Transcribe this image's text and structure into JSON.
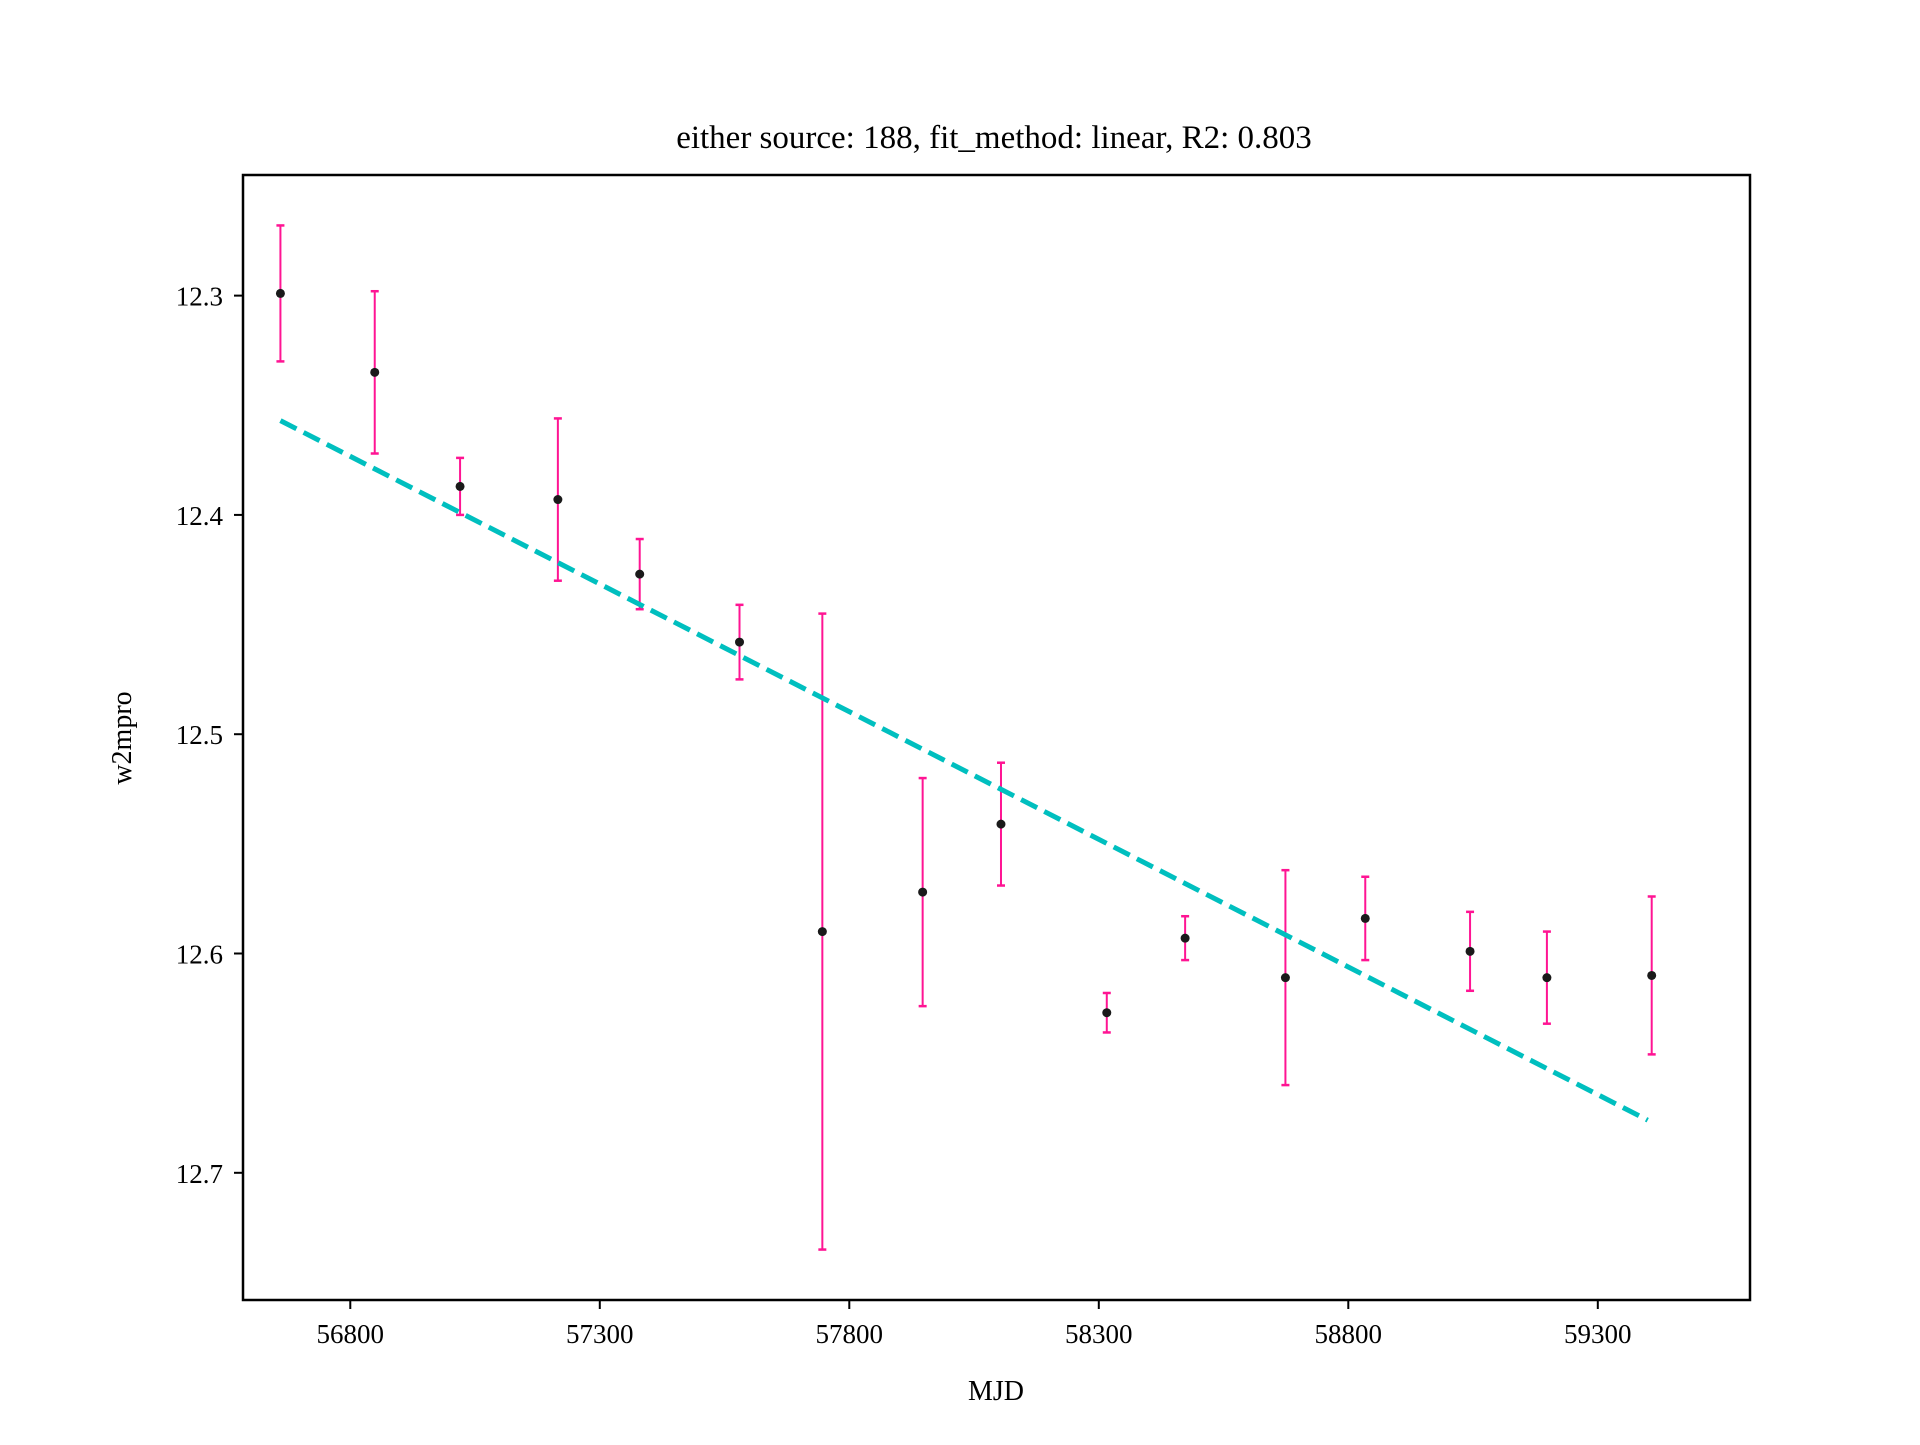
{
  "chart_data": {
    "type": "scatter",
    "title": "either source: 188,  fit_method: linear, R2: 0.803",
    "xlabel": "MJD",
    "ylabel": "w2mpro",
    "xlim": [
      56585,
      59605
    ],
    "ylim": [
      12.758,
      12.245
    ],
    "y_inverted": true,
    "grid": false,
    "x_ticks": [
      56800,
      57300,
      57800,
      58300,
      58800,
      59300
    ],
    "y_ticks": [
      12.3,
      12.4,
      12.5,
      12.6,
      12.7
    ],
    "x_tick_labels": [
      "56800",
      "57300",
      "57800",
      "58300",
      "58800",
      "59300"
    ],
    "y_tick_labels": [
      "12.3",
      "12.4",
      "12.5",
      "12.6",
      "12.7"
    ],
    "colors": {
      "points": "#1a1a1a",
      "errorbars": "#ff1493",
      "fit_line": "#00bfbf",
      "axes": "#000000"
    },
    "series": [
      {
        "type": "errorbar",
        "points": [
          {
            "x": 56660,
            "y": 12.299,
            "yerr": 0.031
          },
          {
            "x": 56849,
            "y": 12.335,
            "yerr": 0.037
          },
          {
            "x": 57020,
            "y": 12.387,
            "yerr": 0.013
          },
          {
            "x": 57216,
            "y": 12.393,
            "yerr": 0.037
          },
          {
            "x": 57380,
            "y": 12.427,
            "yerr": 0.016
          },
          {
            "x": 57580,
            "y": 12.458,
            "yerr": 0.017
          },
          {
            "x": 57746,
            "y": 12.59,
            "yerr": 0.145
          },
          {
            "x": 57947,
            "y": 12.572,
            "yerr": 0.052
          },
          {
            "x": 58104,
            "y": 12.541,
            "yerr": 0.028
          },
          {
            "x": 58316,
            "y": 12.627,
            "yerr": 0.009
          },
          {
            "x": 58473,
            "y": 12.593,
            "yerr": 0.01
          },
          {
            "x": 58674,
            "y": 12.611,
            "yerr": 0.049
          },
          {
            "x": 58834,
            "y": 12.584,
            "yerr": 0.019
          },
          {
            "x": 59044,
            "y": 12.599,
            "yerr": 0.018
          },
          {
            "x": 59198,
            "y": 12.611,
            "yerr": 0.021
          },
          {
            "x": 59408,
            "y": 12.61,
            "yerr": 0.036
          }
        ]
      },
      {
        "type": "line",
        "style": "dashed",
        "x": [
          56660,
          59400
        ],
        "y": [
          12.357,
          12.676
        ]
      }
    ]
  }
}
